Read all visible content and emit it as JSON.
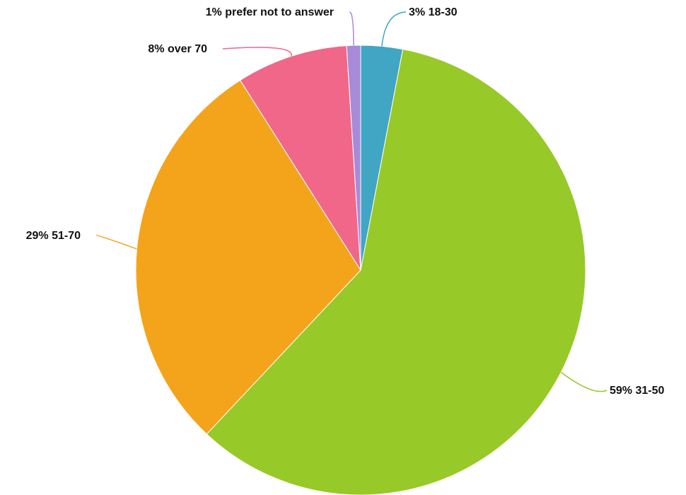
{
  "chart_data": {
    "type": "pie",
    "title": "",
    "start_angle_deg": 0,
    "direction": "clockwise",
    "slices": [
      {
        "name": "18-30",
        "value": 3,
        "label": "3% 18-30",
        "color": "#40a6c4",
        "label_side": "right"
      },
      {
        "name": "31-50",
        "value": 59,
        "label": "59% 31-50",
        "color": "#97c928",
        "label_side": "right"
      },
      {
        "name": "51-70",
        "value": 29,
        "label": "29% 51-70",
        "color": "#f4a41a",
        "label_side": "left"
      },
      {
        "name": "over 70",
        "value": 8,
        "label": "8% over 70",
        "color": "#f0678a",
        "label_side": "left"
      },
      {
        "name": "prefer not to answer",
        "value": 1,
        "label": "1% prefer not to answer",
        "color": "#a88bd8",
        "label_side": "left"
      }
    ]
  }
}
